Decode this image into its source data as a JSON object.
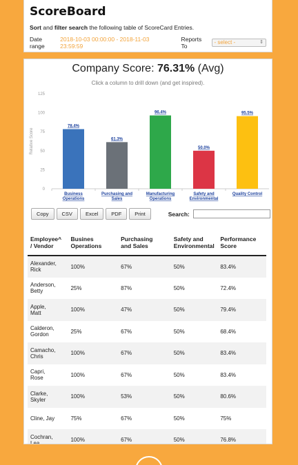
{
  "header": {
    "title": "ScoreBoard",
    "subtitle_bold1": "Sort",
    "subtitle_and": " and ",
    "subtitle_bold2": "filter search",
    "subtitle_rest": " the following table of ScoreCard Entries.",
    "date_label": "Date range",
    "date_value": "2018-10-03 00:00:00 - 2018-11-03 23:59:59",
    "reports_label": "Reports To",
    "reports_select": "- select -"
  },
  "score": {
    "title_prefix": "Company Score: ",
    "value": "76.31%",
    "suffix": " (Avg)",
    "hint": "Click a column to drill down (and get inspired)."
  },
  "chart_data": {
    "type": "bar",
    "categories": [
      [
        "Business",
        "Operations"
      ],
      [
        "Purchasing and",
        "Sales"
      ],
      [
        "Manufacturing",
        "Operations"
      ],
      [
        "Safety and",
        "Environmental"
      ],
      [
        "Quality Control"
      ]
    ],
    "values": [
      78.4,
      61.3,
      96.4,
      50.0,
      95.5
    ],
    "value_labels": [
      "78.4%",
      "61.3%",
      "96.4%",
      "50.0%",
      "95.5%"
    ],
    "colors": [
      "#3a73bb",
      "#6b7178",
      "#2ea84a",
      "#dc3545",
      "#fdc011"
    ],
    "ylabel": "Relative Score",
    "yticks": [
      0,
      25,
      50,
      75,
      100,
      125
    ],
    "ylim": [
      0,
      125
    ]
  },
  "toolbar": {
    "copy": "Copy",
    "csv": "CSV",
    "excel": "Excel",
    "pdf": "PDF",
    "print": "Print",
    "search_label": "Search:"
  },
  "table": {
    "headers": [
      [
        "Employee",
        "/ Vendor"
      ],
      [
        "Busines",
        "Operations"
      ],
      [
        "Purchasing",
        "and Sales"
      ],
      [
        "Safety and",
        "Environmental"
      ],
      [
        "Performance",
        "Score"
      ]
    ],
    "sort_mark": "^",
    "rows": [
      [
        [
          "Alexander,",
          "Rick"
        ],
        "100%",
        "67%",
        "50%",
        "83.4%"
      ],
      [
        [
          "Anderson,",
          "Betty"
        ],
        "25%",
        "87%",
        "50%",
        "72.4%"
      ],
      [
        [
          "Apple,",
          "Matt"
        ],
        "100%",
        "47%",
        "50%",
        "79.4%"
      ],
      [
        [
          "Calderon,",
          "Gordon"
        ],
        "25%",
        "67%",
        "50%",
        "68.4%"
      ],
      [
        [
          "Camacho,",
          "Chris"
        ],
        "100%",
        "67%",
        "50%",
        "83.4%"
      ],
      [
        [
          "Capri,",
          "Rose"
        ],
        "100%",
        "67%",
        "50%",
        "83.4%"
      ],
      [
        [
          "Clarke,",
          "Skyler"
        ],
        "100%",
        "53%",
        "50%",
        "80.6%"
      ],
      [
        [
          "Cline, Jay"
        ],
        "75%",
        "67%",
        "50%",
        "75%"
      ],
      [
        [
          "Cochran,",
          "Lea"
        ],
        "100%",
        "67%",
        "50%",
        "76.8%"
      ]
    ]
  }
}
